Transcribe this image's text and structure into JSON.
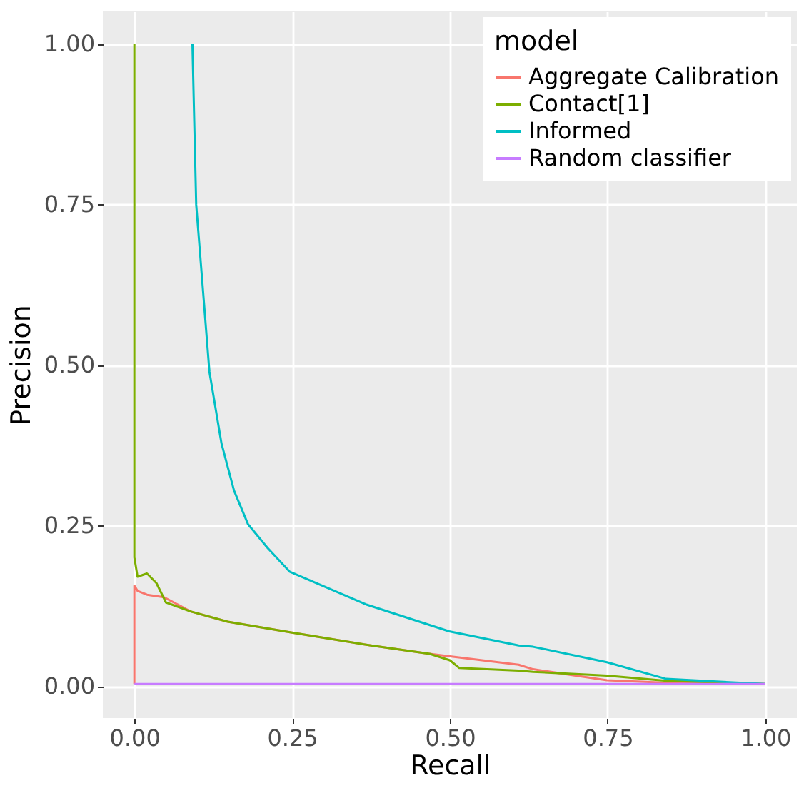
{
  "chart_data": {
    "type": "line",
    "xlabel": "Recall",
    "ylabel": "Precision",
    "legend_title": "model",
    "xlim": [
      -0.05,
      1.05
    ],
    "ylim": [
      -0.05,
      1.05
    ],
    "xticks": [
      {
        "value": 0,
        "label": "0.00"
      },
      {
        "value": 0.25,
        "label": "0.25"
      },
      {
        "value": 0.5,
        "label": "0.50"
      },
      {
        "value": 0.75,
        "label": "0.75"
      },
      {
        "value": 1,
        "label": "1.00"
      }
    ],
    "yticks": [
      {
        "value": 0,
        "label": "0.00"
      },
      {
        "value": 0.25,
        "label": "0.25"
      },
      {
        "value": 0.5,
        "label": "0.50"
      },
      {
        "value": 0.75,
        "label": "0.75"
      },
      {
        "value": 1,
        "label": "1.00"
      }
    ],
    "grid": true,
    "legend": "top right",
    "line_style": "solid",
    "marker": "none",
    "series": [
      {
        "name": "Aggregate Calibration",
        "color": "#f8766d",
        "x": [
          0,
          0,
          0.005,
          0.02,
          0.047,
          0.089,
          0.148,
          0.25,
          0.375,
          0.468,
          0.609,
          0.632,
          0.749,
          0.843,
          1
        ],
        "values": [
          0.003,
          0.156,
          0.148,
          0.142,
          0.138,
          0.116,
          0.1,
          0.083,
          0.063,
          0.05,
          0.033,
          0.026,
          0.009,
          0.005,
          0.003
        ]
      },
      {
        "name": "Contact[1]",
        "color": "#7cae00",
        "x": [
          0,
          0,
          0.005,
          0.02,
          0.035,
          0.05,
          0.089,
          0.148,
          0.25,
          0.375,
          0.468,
          0.5,
          0.515,
          0.609,
          0.632,
          0.749,
          0.843,
          1
        ],
        "values": [
          1.0,
          0.2,
          0.17,
          0.175,
          0.16,
          0.13,
          0.116,
          0.1,
          0.083,
          0.063,
          0.05,
          0.04,
          0.028,
          0.024,
          0.022,
          0.016,
          0.008,
          0.003
        ]
      },
      {
        "name": "Informed",
        "color": "#00bfc4",
        "x": [
          0.092,
          0.098,
          0.119,
          0.138,
          0.158,
          0.18,
          0.211,
          0.246,
          0.367,
          0.499,
          0.609,
          0.632,
          0.749,
          0.843,
          1
        ],
        "values": [
          1.0,
          0.749,
          0.489,
          0.378,
          0.304,
          0.252,
          0.215,
          0.178,
          0.127,
          0.085,
          0.063,
          0.061,
          0.037,
          0.011,
          0.003
        ]
      },
      {
        "name": "Random classifier",
        "color": "#c77cff",
        "x": [
          0,
          1
        ],
        "values": [
          0.003,
          0.003
        ]
      }
    ]
  }
}
